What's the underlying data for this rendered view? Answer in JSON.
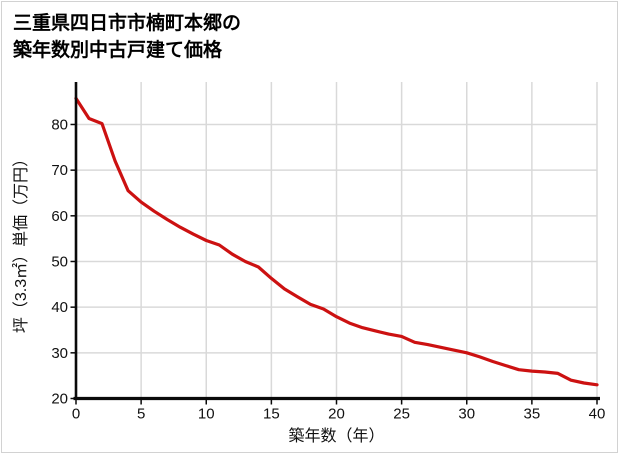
{
  "title_line1": "三重県四日市市楠町本郷の",
  "title_line2": "築年数別中古戸建て価格",
  "chart_data": {
    "type": "line",
    "title": "三重県四日市市楠町本郷の築年数別中古戸建て価格",
    "xlabel": "築年数（年）",
    "ylabel": "坪（3.3㎡）単価（万円）",
    "x": [
      0,
      1,
      2,
      3,
      4,
      5,
      6,
      7,
      8,
      9,
      10,
      11,
      12,
      13,
      14,
      15,
      16,
      17,
      18,
      19,
      20,
      21,
      22,
      23,
      24,
      25,
      26,
      27,
      28,
      29,
      30,
      31,
      32,
      33,
      34,
      35,
      36,
      37,
      38,
      39,
      40
    ],
    "y": [
      85.7,
      81.3,
      80.2,
      72.0,
      65.5,
      63.0,
      61.0,
      59.2,
      57.5,
      56.0,
      54.6,
      53.6,
      51.6,
      50.0,
      48.8,
      46.3,
      44.0,
      42.3,
      40.6,
      39.6,
      37.9,
      36.5,
      35.5,
      34.8,
      34.1,
      33.6,
      32.3,
      31.8,
      31.2,
      30.6,
      30.0,
      29.1,
      28.1,
      27.2,
      26.3,
      26.0,
      25.8,
      25.5,
      24.0,
      23.4,
      23.0
    ],
    "x_ticks": [
      0,
      5,
      10,
      15,
      20,
      25,
      30,
      35,
      40
    ],
    "y_ticks": [
      20,
      30,
      40,
      50,
      60,
      70,
      80
    ],
    "xlim": [
      0,
      40
    ],
    "ylim": [
      20,
      89.3
    ],
    "grid": true,
    "legend": "none",
    "line_color": "#cc1111",
    "axis_color": "#0a0a0a",
    "grid_color": "#d9d9d9"
  }
}
